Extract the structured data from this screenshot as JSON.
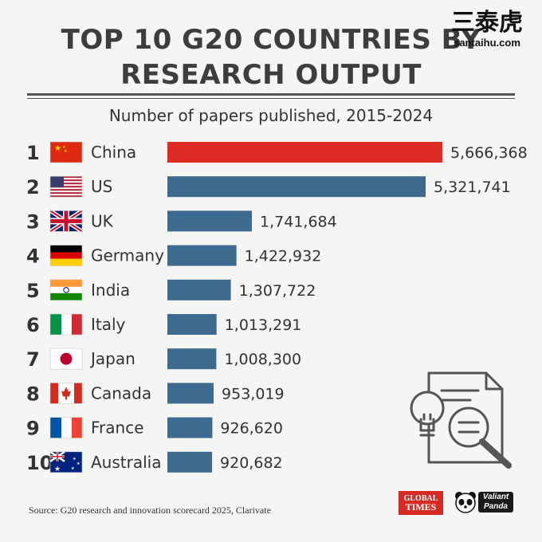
{
  "title_line1": "TOP 10 G20 COUNTRIES BY",
  "title_line2": "RESEARCH OUTPUT",
  "watermark": {
    "cn": "三泰虎",
    "url": "santaihu.com"
  },
  "subtitle": "Number of papers published, 2015-2024",
  "source": "Source: G20 research and innovation scorecard 2025, Clarivate",
  "logos": {
    "global_times_1": "GLOBAL",
    "global_times_2": "TIMES",
    "valiant_panda_1": "Valiant",
    "valiant_panda_2": "Panda"
  },
  "colors": {
    "highlight": "#dd2b25",
    "bar": "#3f6a8f"
  },
  "icons": [
    "flag-cn-icon",
    "flag-us-icon",
    "flag-uk-icon",
    "flag-de-icon",
    "flag-in-icon",
    "flag-it-icon",
    "flag-jp-icon",
    "flag-ca-icon",
    "flag-fr-icon",
    "flag-au-icon",
    "lightbulb-document-magnifier-icon"
  ],
  "chart_data": {
    "type": "bar",
    "orientation": "horizontal",
    "title": "TOP 10 G20 COUNTRIES BY RESEARCH OUTPUT",
    "subtitle": "Number of papers published, 2015-2024",
    "ranks": [
      "1",
      "2",
      "3",
      "4",
      "5",
      "6",
      "7",
      "8",
      "9",
      "10"
    ],
    "categories": [
      "China",
      "US",
      "UK",
      "Germany",
      "India",
      "Italy",
      "Japan",
      "Canada",
      "France",
      "Australia"
    ],
    "values": [
      5666368,
      5321741,
      1741684,
      1422932,
      1307722,
      1013291,
      1008300,
      953019,
      926620,
      920682
    ],
    "value_labels": [
      "5,666,368",
      "5,321,741",
      "1,741,684",
      "1,422,932",
      "1,307,722",
      "1,013,291",
      "1,008,300",
      "953,019",
      "926,620",
      "920,682"
    ],
    "highlight_index": 0,
    "grid": false,
    "legend": "none"
  }
}
